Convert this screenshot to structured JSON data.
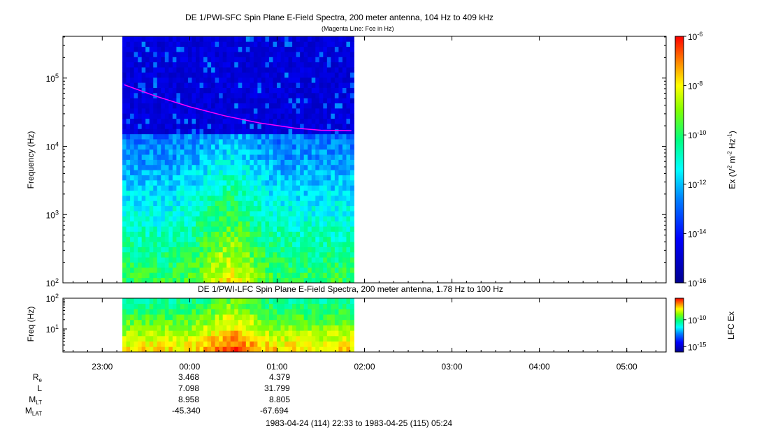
{
  "chart_data": [
    {
      "type": "heatmap",
      "title": "DE 1/PWI-SFC  Spin Plane E-Field Spectra, 200 meter antenna, 104 Hz to 409 kHz",
      "subtitle": "(Magenta Line: Fce in Hz)",
      "ylabel": "Frequency (Hz)",
      "yscale": "log",
      "ylim": [
        100,
        409000
      ],
      "y_ticks": [
        {
          "value": 100,
          "base": "10",
          "exp": "2"
        },
        {
          "value": 1000,
          "base": "10",
          "exp": "3"
        },
        {
          "value": 10000,
          "base": "10",
          "exp": "4"
        },
        {
          "value": 100000,
          "base": "10",
          "exp": "5"
        }
      ],
      "xlim_hours": [
        -1.45,
        5.45
      ],
      "data_hours": [
        -0.77,
        1.88
      ],
      "gap_freq_hz": [
        890,
        1020
      ],
      "fce_line": {
        "name": "Fce",
        "color": "#ff00ff",
        "x_hours": [
          -0.75,
          -0.4,
          0.0,
          0.4,
          0.8,
          1.2,
          1.5,
          1.85
        ],
        "y_hz": [
          80000,
          55000,
          38000,
          28000,
          22000,
          18500,
          17200,
          17000
        ]
      },
      "colorbar": {
        "label_parts": [
          "Ex (V",
          "2",
          " m",
          "-2",
          " Hz",
          "-1",
          ")"
        ],
        "scale": "log",
        "range": [
          1e-16,
          1e-06
        ],
        "ticks": [
          {
            "value": 1e-06,
            "base": "10",
            "exp": "-6"
          },
          {
            "value": 1e-08,
            "base": "10",
            "exp": "-8"
          },
          {
            "value": 1e-10,
            "base": "10",
            "exp": "-10"
          },
          {
            "value": 1e-12,
            "base": "10",
            "exp": "-12"
          },
          {
            "value": 1e-14,
            "base": "10",
            "exp": "-14"
          },
          {
            "value": 1e-16,
            "base": "10",
            "exp": "-16"
          }
        ]
      }
    },
    {
      "type": "heatmap",
      "title": "DE 1/PWI-LFC  Spin Plane E-Field Spectra, 200 meter antenna, 1.78 Hz to 100 Hz",
      "ylabel": "Freq (Hz)",
      "yscale": "log",
      "ylim": [
        1.78,
        100
      ],
      "y_ticks": [
        {
          "value": 10,
          "base": "10",
          "exp": "1"
        },
        {
          "value": 100,
          "base": "10",
          "exp": "2"
        }
      ],
      "data_hours": [
        -0.77,
        1.88
      ],
      "colorbar": {
        "label": "LFC Ex",
        "scale": "log",
        "range": [
          1e-16,
          1e-06
        ],
        "ticks": [
          {
            "value": 1e-10,
            "base": "10",
            "exp": "-10"
          },
          {
            "value": 1e-15,
            "base": "10",
            "exp": "-15"
          }
        ]
      },
      "x_ticks": [
        {
          "value": -1,
          "label": "23:00"
        },
        {
          "value": 0,
          "label": "00:00"
        },
        {
          "value": 1,
          "label": "01:00"
        },
        {
          "value": 2,
          "label": "02:00"
        },
        {
          "value": 3,
          "label": "03:00"
        },
        {
          "value": 4,
          "label": "04:00"
        },
        {
          "value": 5,
          "label": "05:00"
        }
      ]
    }
  ],
  "ephemeris": {
    "rows": [
      {
        "name": "R",
        "sub": "e",
        "values": [
          "3.468",
          "4.379"
        ]
      },
      {
        "name": "L",
        "sub": "",
        "values": [
          "7.098",
          "31.799"
        ]
      },
      {
        "name": "M",
        "sub": "LT",
        "values": [
          "8.958",
          "8.805"
        ]
      },
      {
        "name": "M",
        "sub": "LAT",
        "values": [
          "-45.340",
          "-67.694"
        ]
      }
    ],
    "time_range": "1983-04-24 (114) 22:33 to 1983-04-25 (115) 05:24"
  }
}
